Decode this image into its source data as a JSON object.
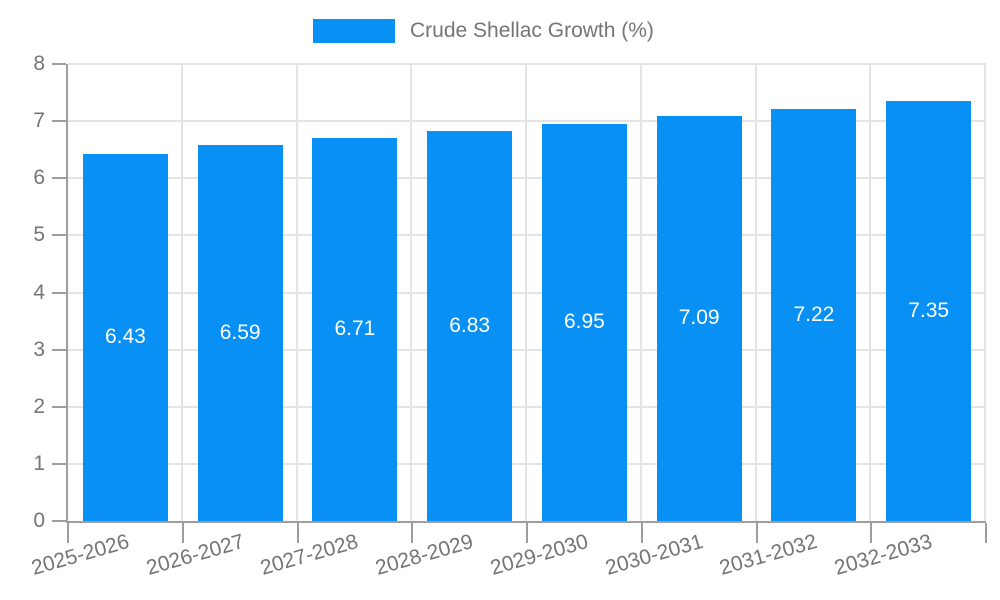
{
  "colors": {
    "bar_fill": "#0890f5",
    "tick_text": "#757575",
    "gridline": "#e4e4e4",
    "axis_line": "#9e9e9e",
    "bar_value_text": "#ffffff",
    "background": "#ffffff"
  },
  "chart_data": {
    "type": "bar",
    "title": "",
    "series_name": "Crude Shellac Growth (%)",
    "categories": [
      "2025-2026",
      "2026-2027",
      "2027-2028",
      "2028-2029",
      "2029-2030",
      "2030-2031",
      "2031-2032",
      "2032-2033"
    ],
    "values": [
      6.43,
      6.59,
      6.71,
      6.83,
      6.95,
      7.09,
      7.22,
      7.35
    ],
    "value_labels": [
      "6.43",
      "6.59",
      "6.71",
      "6.83",
      "6.95",
      "7.09",
      "7.22",
      "7.35"
    ],
    "xlabel": "",
    "ylabel": "",
    "ylim": [
      0,
      8
    ],
    "yticks": [
      0,
      1,
      2,
      3,
      4,
      5,
      6,
      7,
      8
    ],
    "grid": "on",
    "legend_position": "top-center",
    "value_label_position": "center-of-bar",
    "xlabel_rotation_deg": -16
  }
}
